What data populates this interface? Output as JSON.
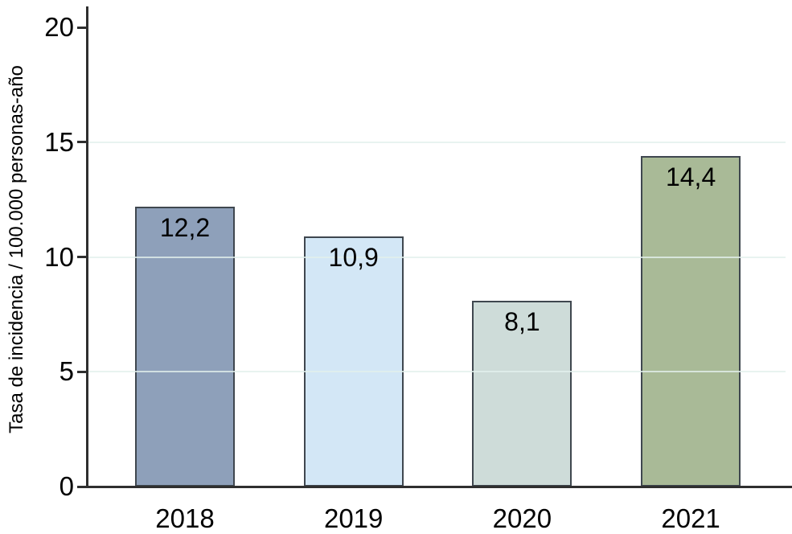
{
  "chart_data": {
    "type": "bar",
    "title": "",
    "categories": [
      "2018",
      "2019",
      "2020",
      "2021"
    ],
    "values": [
      12.2,
      10.9,
      8.1,
      14.4
    ],
    "value_labels": [
      "12,2",
      "10,9",
      "8,1",
      "14,4"
    ],
    "xlabel": "",
    "ylabel": "Tasa de incidencia / 100.000 personas-año",
    "ylim": [
      0,
      20
    ],
    "yticks": [
      0,
      5,
      10,
      15,
      20
    ],
    "ytick_labels": [
      "0",
      "5",
      "10",
      "15",
      "20"
    ],
    "gridlines_at": [
      5,
      10,
      15
    ],
    "grid": true,
    "legend_position": "none",
    "bar_colors": [
      "#8ea0ba",
      "#d3e7f6",
      "#cedcd9",
      "#a9ba97"
    ],
    "bar_border_color": "#3f474f",
    "grid_color": "#e2f0ec",
    "axis_color": "#2f2f2f",
    "label_color": "#000000",
    "background_color": "#ffffff"
  }
}
